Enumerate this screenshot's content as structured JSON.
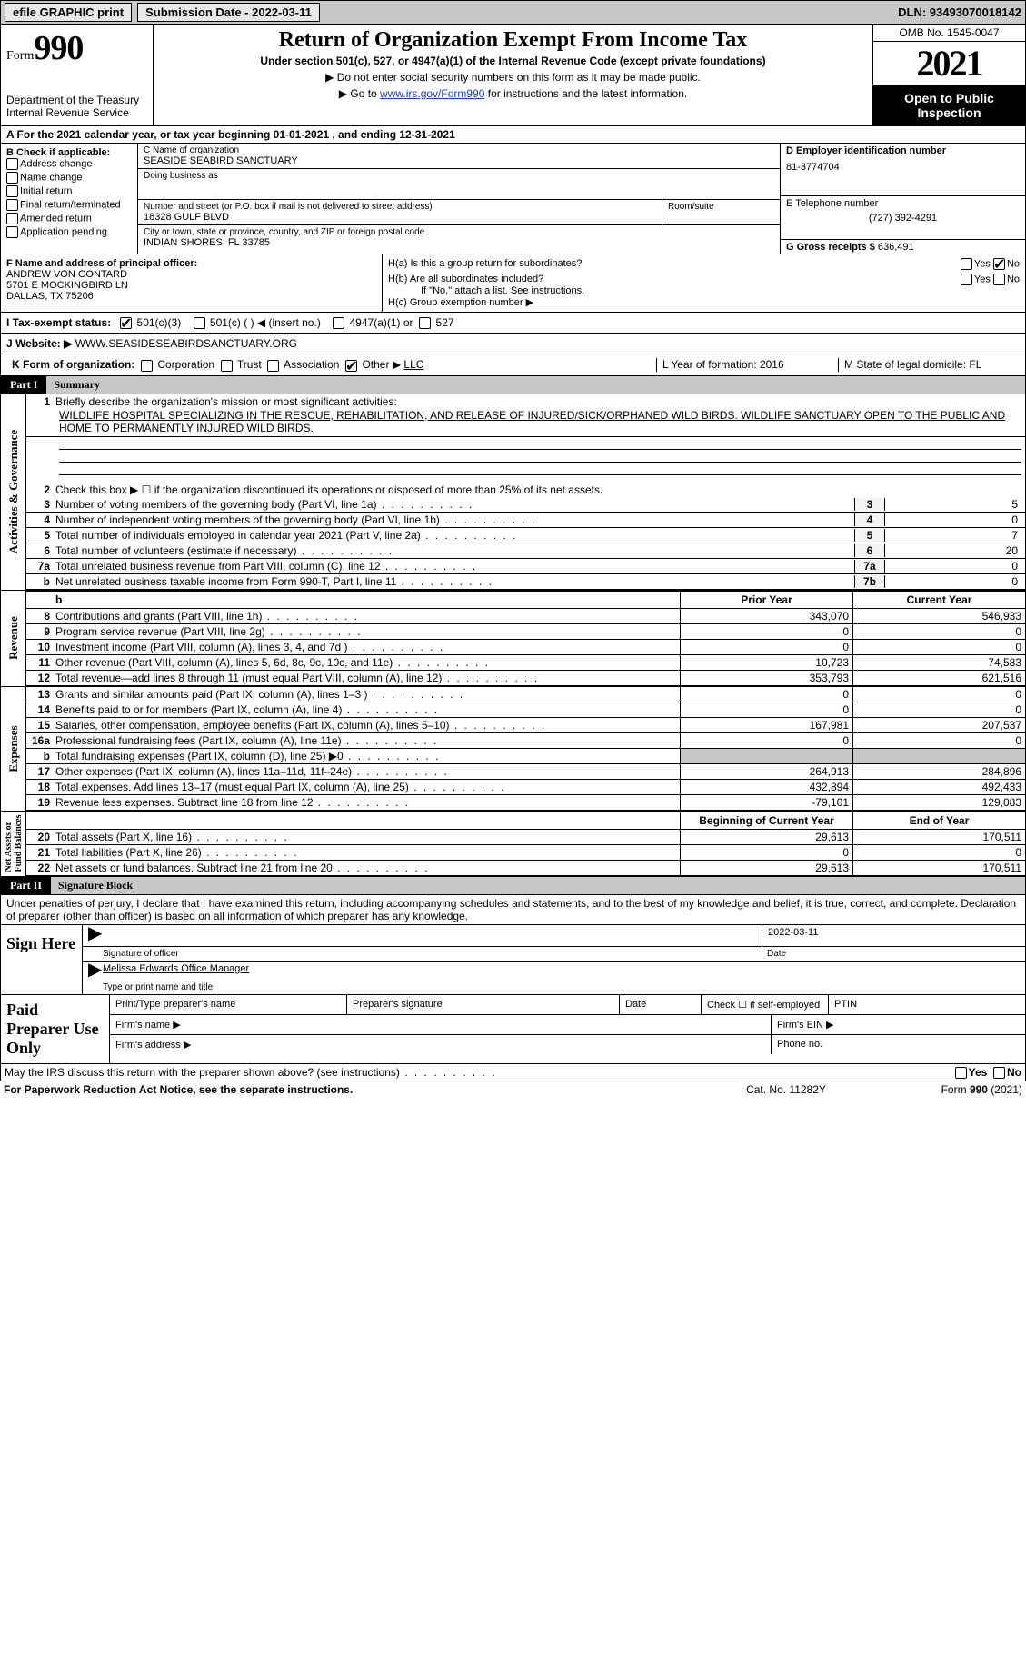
{
  "topbar": {
    "efile": "efile GRAPHIC print",
    "submission_label": "Submission Date - 2022-03-11",
    "dln_label": "DLN: 93493070018142"
  },
  "header": {
    "form_small": "Form",
    "form_big": "990",
    "dept1": "Department of the Treasury",
    "dept2": "Internal Revenue Service",
    "title": "Return of Organization Exempt From Income Tax",
    "subtitle": "Under section 501(c), 527, or 4947(a)(1) of the Internal Revenue Code (except private foundations)",
    "note1": "▶ Do not enter social security numbers on this form as it may be made public.",
    "note2_pre": "▶ Go to ",
    "note2_link": "www.irs.gov/Form990",
    "note2_post": " for instructions and the latest information.",
    "omb": "OMB No. 1545-0047",
    "year": "2021",
    "open": "Open to Public Inspection"
  },
  "rowA": "A For the 2021 calendar year, or tax year beginning 01-01-2021    , and ending 12-31-2021",
  "colB": {
    "hdr": "B Check if applicable:",
    "items": [
      "Address change",
      "Name change",
      "Initial return",
      "Final return/terminated",
      "Amended return",
      "Application pending"
    ]
  },
  "colC": {
    "name_label": "C Name of organization",
    "name": "SEASIDE SEABIRD SANCTUARY",
    "dba_label": "Doing business as",
    "addr_label": "Number and street (or P.O. box if mail is not delivered to street address)",
    "addr": "18328 GULF BLVD",
    "room_label": "Room/suite",
    "city_label": "City or town, state or province, country, and ZIP or foreign postal code",
    "city": "INDIAN SHORES, FL  33785"
  },
  "colD": {
    "ein_label": "D Employer identification number",
    "ein": "81-3774704",
    "phone_label": "E Telephone number",
    "phone": "(727) 392-4291",
    "gross_label": "G Gross receipts $ ",
    "gross": "636,491"
  },
  "F": {
    "label": "F Name and address of principal officer:",
    "name": "ANDREW VON GONTARD",
    "addr1": "5701 E MOCKINGBIRD LN",
    "addr2": "DALLAS, TX  75206"
  },
  "H": {
    "a": "H(a)  Is this a group return for subordinates?",
    "b": "H(b)  Are all subordinates included?",
    "b_note": "If \"No,\" attach a list. See instructions.",
    "c": "H(c)  Group exemption number ▶"
  },
  "taxexempt": {
    "label": "I     Tax-exempt status:",
    "opt1": "501(c)(3)",
    "opt2": "501(c) (  ) ◀ (insert no.)",
    "opt3": "4947(a)(1) or",
    "opt4": "527"
  },
  "website": {
    "label": "J    Website: ▶  ",
    "value": "WWW.SEASIDESEABIRDSANCTUARY.ORG"
  },
  "rowK": {
    "label": "K Form of organization:",
    "opts": [
      "Corporation",
      "Trust",
      "Association",
      "Other ▶"
    ],
    "other_val": "LLC",
    "L": "L Year of formation: 2016",
    "M": "M State of legal domicile: FL"
  },
  "part1": {
    "tag": "Part I",
    "title": "Summary",
    "q1_label": "Briefly describe the organization's mission or most significant activities:",
    "mission": "WILDLIFE HOSPITAL SPECIALIZING IN THE RESCUE, REHABILITATION, AND RELEASE OF INJURED/SICK/ORPHANED WILD BIRDS. WILDLIFE SANCTUARY OPEN TO THE PUBLIC AND HOME TO PERMANENTLY INJURED WILD BIRDS.",
    "q2": "Check this box ▶ ☐  if the organization discontinued its operations or disposed of more than 25% of its net assets.",
    "rows_gov": [
      {
        "n": "3",
        "t": "Number of voting members of the governing body (Part VI, line 1a)",
        "box": "3",
        "v": "5"
      },
      {
        "n": "4",
        "t": "Number of independent voting members of the governing body (Part VI, line 1b)",
        "box": "4",
        "v": "0"
      },
      {
        "n": "5",
        "t": "Total number of individuals employed in calendar year 2021 (Part V, line 2a)",
        "box": "5",
        "v": "7"
      },
      {
        "n": "6",
        "t": "Total number of volunteers (estimate if necessary)",
        "box": "6",
        "v": "20"
      },
      {
        "n": "7a",
        "t": "Total unrelated business revenue from Part VIII, column (C), line 12",
        "box": "7a",
        "v": "0"
      },
      {
        "n": "b",
        "t": "Net unrelated business taxable income from Form 990-T, Part I, line 11",
        "box": "7b",
        "v": "0"
      }
    ],
    "hdr_prior": "Prior Year",
    "hdr_current": "Current Year",
    "revenue": [
      {
        "n": "8",
        "t": "Contributions and grants (Part VIII, line 1h)",
        "p": "343,070",
        "c": "546,933"
      },
      {
        "n": "9",
        "t": "Program service revenue (Part VIII, line 2g)",
        "p": "0",
        "c": "0"
      },
      {
        "n": "10",
        "t": "Investment income (Part VIII, column (A), lines 3, 4, and 7d )",
        "p": "0",
        "c": "0"
      },
      {
        "n": "11",
        "t": "Other revenue (Part VIII, column (A), lines 5, 6d, 8c, 9c, 10c, and 11e)",
        "p": "10,723",
        "c": "74,583"
      },
      {
        "n": "12",
        "t": "Total revenue—add lines 8 through 11 (must equal Part VIII, column (A), line 12)",
        "p": "353,793",
        "c": "621,516"
      }
    ],
    "expenses": [
      {
        "n": "13",
        "t": "Grants and similar amounts paid (Part IX, column (A), lines 1–3 )",
        "p": "0",
        "c": "0"
      },
      {
        "n": "14",
        "t": "Benefits paid to or for members (Part IX, column (A), line 4)",
        "p": "0",
        "c": "0"
      },
      {
        "n": "15",
        "t": "Salaries, other compensation, employee benefits (Part IX, column (A), lines 5–10)",
        "p": "167,981",
        "c": "207,537"
      },
      {
        "n": "16a",
        "t": "Professional fundraising fees (Part IX, column (A), line 11e)",
        "p": "0",
        "c": "0"
      },
      {
        "n": "b",
        "t": "Total fundraising expenses (Part IX, column (D), line 25) ▶0",
        "p": "",
        "c": "",
        "shade": true
      },
      {
        "n": "17",
        "t": "Other expenses (Part IX, column (A), lines 11a–11d, 11f–24e)",
        "p": "264,913",
        "c": "284,896"
      },
      {
        "n": "18",
        "t": "Total expenses. Add lines 13–17 (must equal Part IX, column (A), line 25)",
        "p": "432,894",
        "c": "492,433"
      },
      {
        "n": "19",
        "t": "Revenue less expenses. Subtract line 18 from line 12",
        "p": "-79,101",
        "c": "129,083"
      }
    ],
    "hdr_begin": "Beginning of Current Year",
    "hdr_end": "End of Year",
    "netassets": [
      {
        "n": "20",
        "t": "Total assets (Part X, line 16)",
        "p": "29,613",
        "c": "170,511"
      },
      {
        "n": "21",
        "t": "Total liabilities (Part X, line 26)",
        "p": "0",
        "c": "0"
      },
      {
        "n": "22",
        "t": "Net assets or fund balances. Subtract line 21 from line 20",
        "p": "29,613",
        "c": "170,511"
      }
    ]
  },
  "part2": {
    "tag": "Part II",
    "title": "Signature Block",
    "declaration": "Under penalties of perjury, I declare that I have examined this return, including accompanying schedules and statements, and to the best of my knowledge and belief, it is true, correct, and complete. Declaration of preparer (other than officer) is based on all information of which preparer has any knowledge.",
    "sign_here": "Sign Here",
    "sig_officer": "Signature of officer",
    "sig_date": "2022-03-11",
    "date_lbl": "Date",
    "name_title": "Melissa Edwards  Office Manager",
    "name_title_lbl": "Type or print name and title",
    "paid": "Paid Preparer Use Only",
    "pr_name": "Print/Type preparer's name",
    "pr_sig": "Preparer's signature",
    "pr_date": "Date",
    "pr_check": "Check ☐ if self-employed",
    "pr_ptin": "PTIN",
    "firm_name": "Firm's name  ▶",
    "firm_ein": "Firm's EIN ▶",
    "firm_addr": "Firm's address ▶",
    "firm_phone": "Phone no."
  },
  "footer": {
    "irs_discuss": "May the IRS discuss this return with the preparer shown above? (see instructions)",
    "yes": "Yes",
    "no": "No",
    "paperwork": "For Paperwork Reduction Act Notice, see the separate instructions.",
    "cat": "Cat. No. 11282Y",
    "formref": "Form 990 (2021)"
  }
}
